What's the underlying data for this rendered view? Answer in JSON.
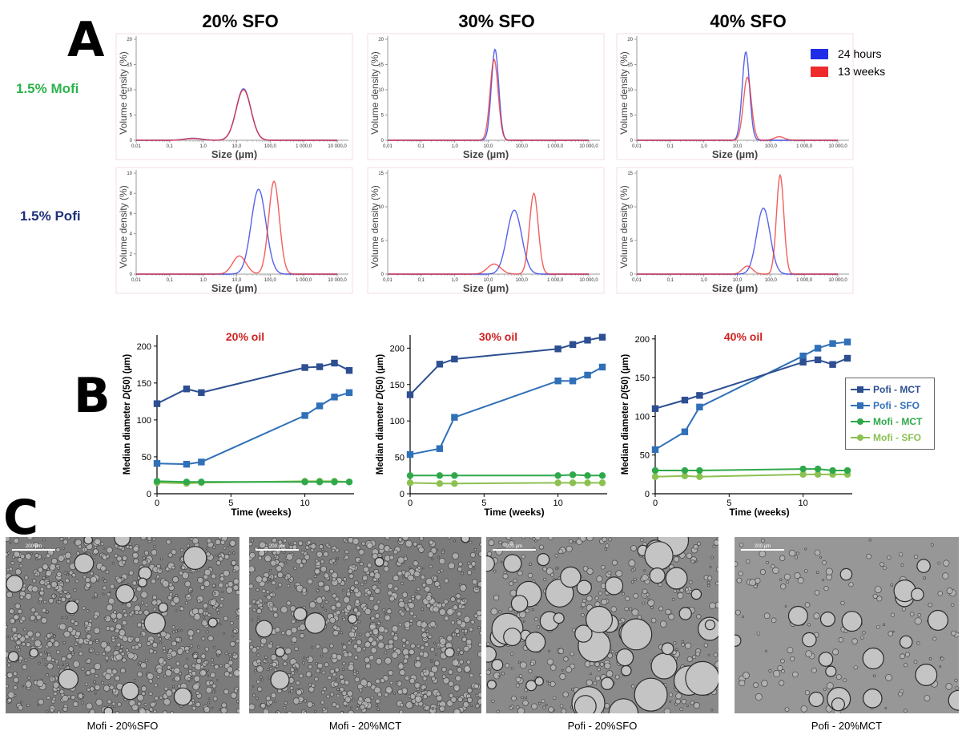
{
  "panel_labels": {
    "a": "A",
    "b": "B",
    "c": "C"
  },
  "panelA": {
    "column_titles": [
      "20% SFO",
      "30% SFO",
      "40% SFO"
    ],
    "row_labels": [
      "1.5% Mofi",
      "1.5% Pofi"
    ],
    "row_label_colors": [
      "#2bb34a",
      "#1f2f7a"
    ],
    "legend": [
      {
        "label": "24 hours",
        "color": "#1f2ee6"
      },
      {
        "label": "13 weeks",
        "color": "#ee2a2a"
      }
    ],
    "ylabel": "Volume density (%)",
    "xlabel": "Size (µm)",
    "x_tick_labels": [
      "0,01",
      "0,1",
      "1,0",
      "10,0",
      "100,0",
      "1 000,0",
      "10 000,0"
    ]
  },
  "panelB": {
    "ylabel_prefix": "Median diameter ",
    "ylabel_italic": "D",
    "ylabel_suffix": "(50) (µm)",
    "xlabel": "Time (weeks)",
    "legend": [
      {
        "label": "Pofi - MCT",
        "color": "#2d4f91",
        "marker": "square"
      },
      {
        "label": "Pofi - SFO",
        "color": "#3070b8",
        "marker": "square"
      },
      {
        "label": "Mofi - MCT",
        "color": "#2fa84a",
        "marker": "circle"
      },
      {
        "label": "Mofi - SFO",
        "color": "#8cc152",
        "marker": "circle"
      }
    ]
  },
  "panelC": {
    "scale_bar_label": "200 µm",
    "captions": [
      "Mofi - 20%SFO",
      "Mofi - 20%MCT",
      "Pofi - 20%SFO",
      "Pofi - 20%MCT"
    ]
  },
  "chart_data": [
    {
      "type": "line",
      "title": "",
      "panel": "A",
      "grid": "3x2 size distribution curves",
      "xscale": "log",
      "xlim": [
        0.01,
        10000
      ],
      "ylabel": "Volume density (%)",
      "xlabel": "Size (µm)",
      "subplots": [
        {
          "row": "1.5% Mofi",
          "col": "20% SFO",
          "ylim": [
            0,
            20
          ],
          "yticks": [
            0,
            5,
            10,
            15,
            20
          ],
          "series": [
            {
              "name": "24 hours",
              "peaks": [
                {
                  "center": 0.5,
                  "height": 0.4,
                  "width": 0.25
                },
                {
                  "center": 16,
                  "height": 10.2,
                  "width": 0.22
                }
              ]
            },
            {
              "name": "13 weeks",
              "peaks": [
                {
                  "center": 0.5,
                  "height": 0.35,
                  "width": 0.25
                },
                {
                  "center": 16,
                  "height": 10.0,
                  "width": 0.22
                }
              ]
            }
          ]
        },
        {
          "row": "1.5% Mofi",
          "col": "30% SFO",
          "ylim": [
            0,
            20
          ],
          "yticks": [
            0,
            5,
            10,
            15,
            20
          ],
          "series": [
            {
              "name": "24 hours",
              "peaks": [
                {
                  "center": 16,
                  "height": 18,
                  "width": 0.11
                }
              ]
            },
            {
              "name": "13 weeks",
              "peaks": [
                {
                  "center": 15,
                  "height": 16,
                  "width": 0.12
                }
              ]
            }
          ]
        },
        {
          "row": "1.5% Mofi",
          "col": "40% SFO",
          "ylim": [
            0,
            20
          ],
          "yticks": [
            0,
            5,
            10,
            15,
            20
          ],
          "series": [
            {
              "name": "24 hours",
              "peaks": [
                {
                  "center": 18,
                  "height": 17.5,
                  "width": 0.11
                }
              ]
            },
            {
              "name": "13 weeks",
              "peaks": [
                {
                  "center": 20,
                  "height": 12.5,
                  "width": 0.12
                },
                {
                  "center": 180,
                  "height": 0.7,
                  "width": 0.15
                }
              ]
            }
          ]
        },
        {
          "row": "1.5% Pofi",
          "col": "20% SFO",
          "ylim": [
            0,
            10
          ],
          "yticks": [
            0,
            2,
            4,
            6,
            8,
            10
          ],
          "series": [
            {
              "name": "24 hours",
              "peaks": [
                {
                  "center": 45,
                  "height": 8.4,
                  "width": 0.22
                }
              ]
            },
            {
              "name": "13 weeks",
              "peaks": [
                {
                  "center": 12,
                  "height": 1.8,
                  "width": 0.2
                },
                {
                  "center": 130,
                  "height": 9.2,
                  "width": 0.16
                }
              ]
            }
          ]
        },
        {
          "row": "1.5% Pofi",
          "col": "30% SFO",
          "ylim": [
            0,
            15
          ],
          "yticks": [
            0,
            5,
            10,
            15
          ],
          "series": [
            {
              "name": "24 hours",
              "peaks": [
                {
                  "center": 60,
                  "height": 9.5,
                  "width": 0.22
                }
              ]
            },
            {
              "name": "13 weeks",
              "peaks": [
                {
                  "center": 15,
                  "height": 1.5,
                  "width": 0.2
                },
                {
                  "center": 230,
                  "height": 12,
                  "width": 0.13
                }
              ]
            }
          ]
        },
        {
          "row": "1.5% Pofi",
          "col": "40% SFO",
          "ylim": [
            0,
            15
          ],
          "yticks": [
            0,
            5,
            10,
            15
          ],
          "series": [
            {
              "name": "24 hours",
              "peaks": [
                {
                  "center": 60,
                  "height": 9.8,
                  "width": 0.2
                }
              ]
            },
            {
              "name": "13 weeks",
              "peaks": [
                {
                  "center": 20,
                  "height": 1.2,
                  "width": 0.15
                },
                {
                  "center": 190,
                  "height": 14.7,
                  "width": 0.11
                }
              ]
            }
          ]
        }
      ]
    },
    {
      "type": "line",
      "panel": "B",
      "title": "20% oil",
      "xlabel": "Time (weeks)",
      "ylabel": "Median diameter D(50) (µm)",
      "xlim": [
        0,
        13
      ],
      "xticks": [
        0,
        5,
        10
      ],
      "ylim": [
        0,
        215
      ],
      "yticks": [
        0,
        50,
        100,
        150,
        200
      ],
      "x": [
        0,
        2,
        3,
        10,
        11,
        12,
        13
      ],
      "series": [
        {
          "name": "Pofi - MCT",
          "values": [
            122,
            142,
            137,
            171,
            172,
            177,
            167
          ]
        },
        {
          "name": "Pofi - SFO",
          "values": [
            41,
            40,
            43,
            106,
            119,
            131,
            137
          ]
        },
        {
          "name": "Mofi - MCT",
          "values": [
            17,
            16,
            16,
            16,
            16,
            16,
            16
          ]
        },
        {
          "name": "Mofi - SFO",
          "values": [
            15,
            14,
            15,
            17,
            17,
            17,
            16
          ]
        }
      ]
    },
    {
      "type": "line",
      "panel": "B",
      "title": "30% oil",
      "xlabel": "Time (weeks)",
      "ylabel": "Median diameter D(50) (µm)",
      "xlim": [
        0,
        13
      ],
      "xticks": [
        0,
        5,
        10
      ],
      "ylim": [
        0,
        218
      ],
      "yticks": [
        0,
        50,
        100,
        150,
        200
      ],
      "x": [
        0,
        2,
        3,
        10,
        11,
        12,
        13
      ],
      "series": [
        {
          "name": "Pofi - MCT",
          "values": [
            136,
            178,
            185,
            199,
            205,
            211,
            215
          ]
        },
        {
          "name": "Pofi - SFO",
          "values": [
            54,
            62,
            105,
            155,
            155,
            163,
            174
          ]
        },
        {
          "name": "Mofi - MCT",
          "values": [
            25,
            25,
            25,
            25,
            26,
            25,
            25
          ]
        },
        {
          "name": "Mofi - SFO",
          "values": [
            15,
            14,
            14,
            15,
            15,
            15,
            15
          ]
        }
      ]
    },
    {
      "type": "line",
      "panel": "B",
      "title": "40% oil",
      "xlabel": "Time (weeks)",
      "ylabel": "Median diameter D(50) (µm)",
      "xlim": [
        0,
        13
      ],
      "xticks": [
        0,
        5,
        10
      ],
      "ylim": [
        0,
        205
      ],
      "yticks": [
        0,
        50,
        100,
        150,
        200
      ],
      "x": [
        0,
        2,
        3,
        10,
        11,
        12,
        13
      ],
      "series": [
        {
          "name": "Pofi - MCT",
          "values": [
            110,
            121,
            127,
            170,
            173,
            167,
            175
          ]
        },
        {
          "name": "Pofi - SFO",
          "values": [
            57,
            80,
            112,
            178,
            188,
            194,
            196
          ]
        },
        {
          "name": "Mofi - MCT",
          "values": [
            30,
            30,
            30,
            32,
            32,
            30,
            30
          ]
        },
        {
          "name": "Mofi - SFO",
          "values": [
            22,
            23,
            22,
            25,
            25,
            25,
            25
          ]
        }
      ]
    }
  ]
}
